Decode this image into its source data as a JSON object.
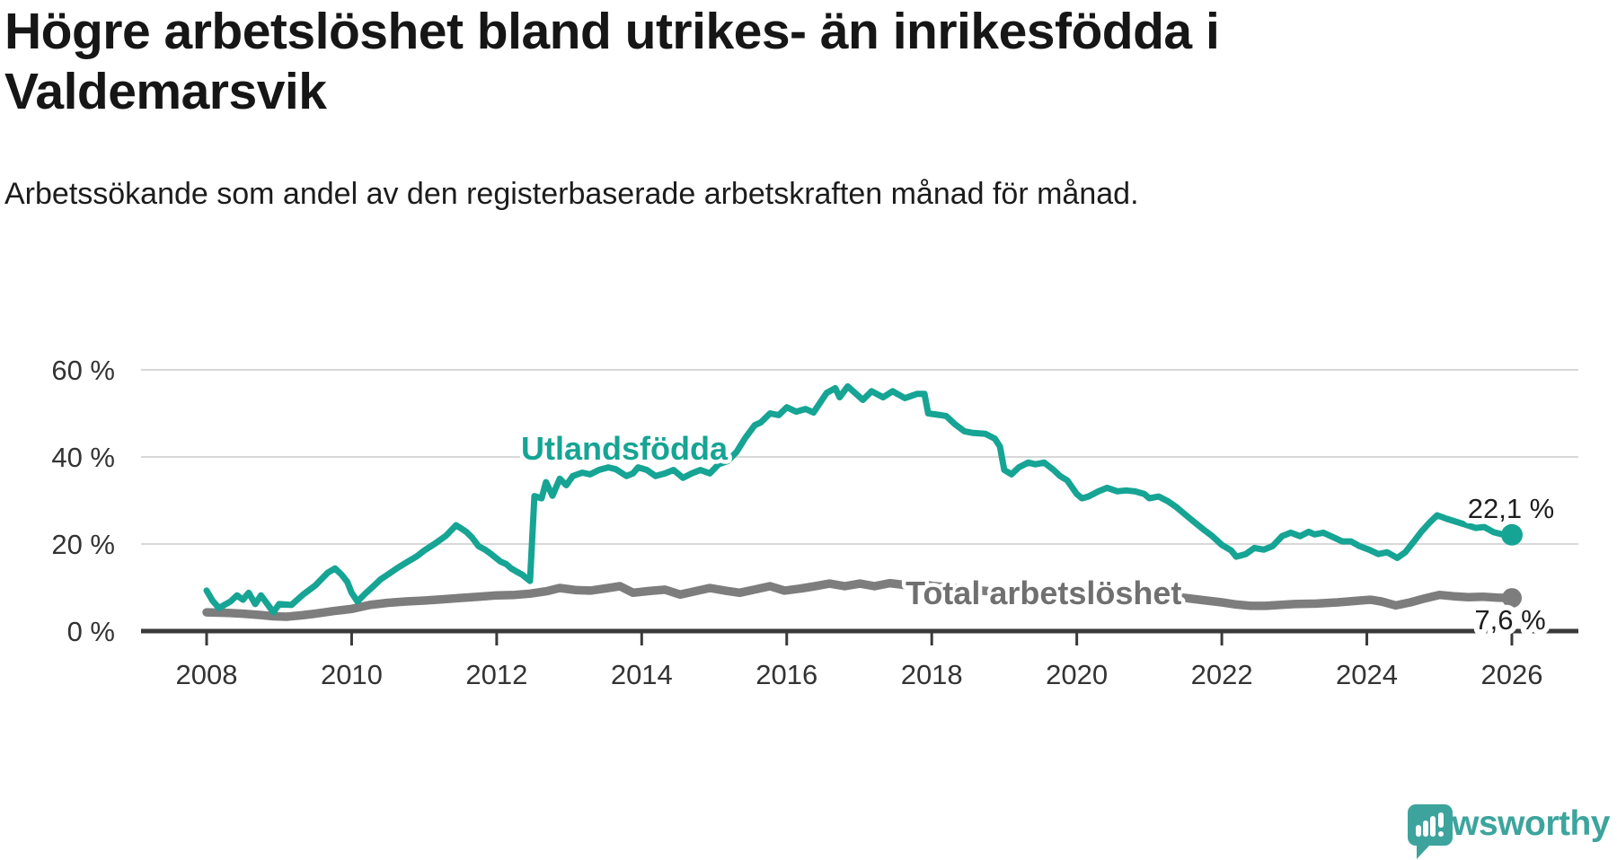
{
  "header": {
    "title": "Högre arbetslöshet bland utrikes- än inrikesfödda i Valdemarsvik",
    "subtitle": "Arbetssökande som andel av den registerbaserade arbetskraften månad för månad."
  },
  "branding": {
    "logo_text": "Newsworthy",
    "logo_icon": "newsworthy-speech-bubble-bar-chart",
    "logo_color": "#3da49d"
  },
  "chart_data": {
    "type": "line",
    "title": "Högre arbetslöshet bland utrikes- än inrikesfödda i Valdemarsvik",
    "subtitle": "Arbetssökande som andel av den registerbaserade arbetskraften månad för månad.",
    "grid": "horizontal",
    "legend_position": "inline-labels",
    "x_axis": {
      "tick_values": [
        2008,
        2010,
        2012,
        2014,
        2016,
        2018,
        2020,
        2022,
        2024,
        2026
      ],
      "tick_labels": [
        "2008",
        "2010",
        "2012",
        "2014",
        "2016",
        "2018",
        "2020",
        "2022",
        "2024",
        "2026"
      ],
      "range": [
        2007.1,
        2026.9
      ]
    },
    "y_axis": {
      "unit": "%",
      "tick_values": [
        0,
        20,
        40,
        60
      ],
      "tick_labels": [
        "0 %",
        "20 %",
        "40 %",
        "60 %"
      ],
      "range": [
        0,
        62
      ],
      "gridlines": true
    },
    "colors": {
      "utlandsfodda": "#16a494",
      "total": "#7d7d7d",
      "gridline": "#d8d8d8",
      "axis": "#3a3a3a"
    },
    "series": [
      {
        "name": "Utlandsfödda",
        "color": "#16a494",
        "end_value": 22.1,
        "end_label": "22,1 %",
        "points": [
          [
            2008.0,
            9.3
          ],
          [
            2008.08,
            7.0
          ],
          [
            2008.17,
            5.3
          ],
          [
            2008.33,
            6.8
          ],
          [
            2008.42,
            8.2
          ],
          [
            2008.5,
            7.2
          ],
          [
            2008.58,
            8.8
          ],
          [
            2008.67,
            6.2
          ],
          [
            2008.75,
            8.2
          ],
          [
            2008.83,
            6.4
          ],
          [
            2008.92,
            4.3
          ],
          [
            2009.0,
            6.2
          ],
          [
            2009.17,
            6.0
          ],
          [
            2009.33,
            8.4
          ],
          [
            2009.5,
            10.5
          ],
          [
            2009.67,
            13.4
          ],
          [
            2009.77,
            14.4
          ],
          [
            2009.86,
            13.0
          ],
          [
            2009.94,
            11.3
          ],
          [
            2010.0,
            8.8
          ],
          [
            2010.08,
            6.8
          ],
          [
            2010.2,
            8.8
          ],
          [
            2010.3,
            10.3
          ],
          [
            2010.4,
            11.9
          ],
          [
            2010.5,
            13.0
          ],
          [
            2010.65,
            14.7
          ],
          [
            2010.78,
            16.0
          ],
          [
            2010.9,
            17.2
          ],
          [
            2011.0,
            18.5
          ],
          [
            2011.15,
            20.1
          ],
          [
            2011.3,
            21.9
          ],
          [
            2011.44,
            24.3
          ],
          [
            2011.5,
            23.7
          ],
          [
            2011.58,
            22.8
          ],
          [
            2011.66,
            21.5
          ],
          [
            2011.75,
            19.5
          ],
          [
            2011.84,
            18.7
          ],
          [
            2011.93,
            17.6
          ],
          [
            2012.05,
            16.0
          ],
          [
            2012.13,
            15.4
          ],
          [
            2012.2,
            14.4
          ],
          [
            2012.28,
            13.6
          ],
          [
            2012.35,
            13.0
          ],
          [
            2012.46,
            11.5
          ],
          [
            2012.52,
            31.0
          ],
          [
            2012.62,
            30.5
          ],
          [
            2012.68,
            34.2
          ],
          [
            2012.77,
            31.1
          ],
          [
            2012.87,
            35.0
          ],
          [
            2012.96,
            33.5
          ],
          [
            2013.05,
            35.6
          ],
          [
            2013.18,
            36.4
          ],
          [
            2013.29,
            36.0
          ],
          [
            2013.41,
            37.0
          ],
          [
            2013.54,
            37.6
          ],
          [
            2013.64,
            37.2
          ],
          [
            2013.79,
            35.6
          ],
          [
            2013.88,
            36.2
          ],
          [
            2013.95,
            37.6
          ],
          [
            2014.07,
            37.0
          ],
          [
            2014.19,
            35.6
          ],
          [
            2014.32,
            36.2
          ],
          [
            2014.44,
            37.0
          ],
          [
            2014.57,
            35.2
          ],
          [
            2014.69,
            36.2
          ],
          [
            2014.81,
            37.0
          ],
          [
            2014.94,
            36.2
          ],
          [
            2015.06,
            38.3
          ],
          [
            2015.19,
            39.1
          ],
          [
            2015.31,
            41.2
          ],
          [
            2015.43,
            44.4
          ],
          [
            2015.56,
            47.3
          ],
          [
            2015.64,
            47.9
          ],
          [
            2015.77,
            50.0
          ],
          [
            2015.89,
            49.6
          ],
          [
            2016.0,
            51.4
          ],
          [
            2016.13,
            50.4
          ],
          [
            2016.26,
            51.0
          ],
          [
            2016.37,
            50.2
          ],
          [
            2016.55,
            54.7
          ],
          [
            2016.67,
            55.8
          ],
          [
            2016.73,
            53.7
          ],
          [
            2016.84,
            56.2
          ],
          [
            2017.05,
            53.1
          ],
          [
            2017.17,
            55.1
          ],
          [
            2017.33,
            53.7
          ],
          [
            2017.46,
            55.1
          ],
          [
            2017.63,
            53.5
          ],
          [
            2017.8,
            54.5
          ],
          [
            2017.9,
            54.5
          ],
          [
            2017.95,
            50.0
          ],
          [
            2018.12,
            49.6
          ],
          [
            2018.2,
            49.4
          ],
          [
            2018.32,
            47.5
          ],
          [
            2018.45,
            45.9
          ],
          [
            2018.57,
            45.5
          ],
          [
            2018.74,
            45.3
          ],
          [
            2018.87,
            44.2
          ],
          [
            2018.94,
            42.4
          ],
          [
            2019.0,
            37.0
          ],
          [
            2019.1,
            36.0
          ],
          [
            2019.2,
            37.6
          ],
          [
            2019.33,
            38.7
          ],
          [
            2019.43,
            38.3
          ],
          [
            2019.55,
            38.7
          ],
          [
            2019.68,
            37.0
          ],
          [
            2019.77,
            35.6
          ],
          [
            2019.87,
            34.6
          ],
          [
            2020.0,
            31.5
          ],
          [
            2020.07,
            30.5
          ],
          [
            2020.16,
            30.9
          ],
          [
            2020.3,
            32.1
          ],
          [
            2020.42,
            32.9
          ],
          [
            2020.56,
            32.1
          ],
          [
            2020.68,
            32.3
          ],
          [
            2020.8,
            32.1
          ],
          [
            2020.93,
            31.5
          ],
          [
            2021.0,
            30.5
          ],
          [
            2021.13,
            30.9
          ],
          [
            2021.26,
            29.8
          ],
          [
            2021.38,
            28.4
          ],
          [
            2021.5,
            26.7
          ],
          [
            2021.63,
            24.9
          ],
          [
            2021.75,
            23.3
          ],
          [
            2021.87,
            21.8
          ],
          [
            2022.0,
            19.8
          ],
          [
            2022.13,
            18.5
          ],
          [
            2022.2,
            17.1
          ],
          [
            2022.33,
            17.7
          ],
          [
            2022.45,
            19.1
          ],
          [
            2022.58,
            18.7
          ],
          [
            2022.7,
            19.5
          ],
          [
            2022.83,
            21.8
          ],
          [
            2022.95,
            22.6
          ],
          [
            2023.08,
            21.8
          ],
          [
            2023.2,
            22.8
          ],
          [
            2023.28,
            22.2
          ],
          [
            2023.4,
            22.6
          ],
          [
            2023.53,
            21.6
          ],
          [
            2023.66,
            20.6
          ],
          [
            2023.78,
            20.6
          ],
          [
            2023.9,
            19.5
          ],
          [
            2024.03,
            18.7
          ],
          [
            2024.16,
            17.7
          ],
          [
            2024.28,
            18.1
          ],
          [
            2024.42,
            16.8
          ],
          [
            2024.53,
            18.1
          ],
          [
            2024.65,
            20.6
          ],
          [
            2024.75,
            22.8
          ],
          [
            2024.87,
            25.0
          ],
          [
            2024.97,
            26.6
          ],
          [
            2025.1,
            25.8
          ],
          [
            2025.35,
            24.5
          ],
          [
            2025.5,
            23.7
          ],
          [
            2025.62,
            23.9
          ],
          [
            2025.75,
            22.7
          ],
          [
            2025.87,
            22.2
          ],
          [
            2026.0,
            22.1
          ]
        ]
      },
      {
        "name": "Total arbetslöshet",
        "color": "#7d7d7d",
        "end_value": 7.6,
        "end_label": "7,6 %",
        "points": [
          [
            2008.0,
            4.3
          ],
          [
            2008.25,
            4.2
          ],
          [
            2008.5,
            4.0
          ],
          [
            2008.75,
            3.7
          ],
          [
            2008.92,
            3.4
          ],
          [
            2009.1,
            3.3
          ],
          [
            2009.3,
            3.6
          ],
          [
            2009.5,
            4.0
          ],
          [
            2009.75,
            4.6
          ],
          [
            2010.0,
            5.1
          ],
          [
            2010.25,
            6.0
          ],
          [
            2010.5,
            6.5
          ],
          [
            2010.75,
            6.8
          ],
          [
            2011.0,
            7.0
          ],
          [
            2011.25,
            7.3
          ],
          [
            2011.5,
            7.6
          ],
          [
            2011.75,
            7.9
          ],
          [
            2012.0,
            8.2
          ],
          [
            2012.25,
            8.3
          ],
          [
            2012.46,
            8.6
          ],
          [
            2012.7,
            9.2
          ],
          [
            2012.87,
            9.9
          ],
          [
            2013.1,
            9.4
          ],
          [
            2013.29,
            9.3
          ],
          [
            2013.5,
            9.8
          ],
          [
            2013.7,
            10.3
          ],
          [
            2013.88,
            8.8
          ],
          [
            2014.1,
            9.2
          ],
          [
            2014.32,
            9.5
          ],
          [
            2014.53,
            8.4
          ],
          [
            2014.75,
            9.2
          ],
          [
            2014.94,
            9.9
          ],
          [
            2015.15,
            9.3
          ],
          [
            2015.35,
            8.8
          ],
          [
            2015.55,
            9.5
          ],
          [
            2015.77,
            10.3
          ],
          [
            2015.97,
            9.3
          ],
          [
            2016.2,
            9.8
          ],
          [
            2016.39,
            10.3
          ],
          [
            2016.59,
            10.9
          ],
          [
            2016.8,
            10.3
          ],
          [
            2017.01,
            10.9
          ],
          [
            2017.21,
            10.3
          ],
          [
            2017.42,
            11.0
          ],
          [
            2017.63,
            10.6
          ],
          [
            2017.83,
            10.9
          ],
          [
            2018.0,
            10.4
          ],
          [
            2018.25,
            10.0
          ],
          [
            2018.5,
            9.6
          ],
          [
            2018.75,
            9.2
          ],
          [
            2019.0,
            8.9
          ],
          [
            2019.25,
            8.7
          ],
          [
            2019.5,
            8.6
          ],
          [
            2019.75,
            8.7
          ],
          [
            2020.0,
            8.8
          ],
          [
            2020.25,
            9.1
          ],
          [
            2020.45,
            9.3
          ],
          [
            2020.7,
            9.0
          ],
          [
            2021.0,
            8.5
          ],
          [
            2021.25,
            8.1
          ],
          [
            2021.5,
            7.6
          ],
          [
            2021.75,
            7.1
          ],
          [
            2022.0,
            6.6
          ],
          [
            2022.2,
            6.1
          ],
          [
            2022.4,
            5.8
          ],
          [
            2022.6,
            5.8
          ],
          [
            2022.8,
            6.0
          ],
          [
            2023.0,
            6.2
          ],
          [
            2023.3,
            6.3
          ],
          [
            2023.6,
            6.6
          ],
          [
            2023.9,
            7.0
          ],
          [
            2024.05,
            7.2
          ],
          [
            2024.2,
            6.8
          ],
          [
            2024.4,
            5.9
          ],
          [
            2024.6,
            6.6
          ],
          [
            2024.8,
            7.5
          ],
          [
            2025.0,
            8.3
          ],
          [
            2025.2,
            8.0
          ],
          [
            2025.4,
            7.8
          ],
          [
            2025.6,
            7.9
          ],
          [
            2025.8,
            7.7
          ],
          [
            2026.0,
            7.6
          ]
        ]
      }
    ]
  }
}
